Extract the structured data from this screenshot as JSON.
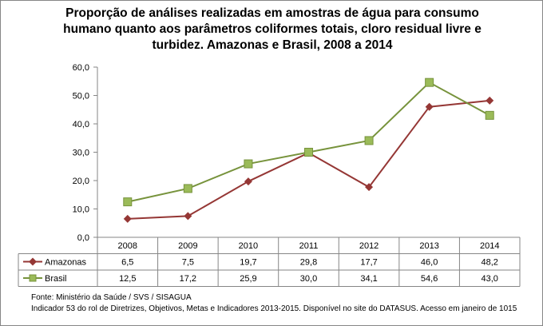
{
  "chart_data": {
    "type": "line",
    "title": "Proporção de análises realizadas em amostras de água para consumo humano quanto aos parâmetros coliformes totais, cloro residual livre e turbidez. Amazonas e Brasil, 2008 a 2014",
    "categories": [
      "2008",
      "2009",
      "2010",
      "2011",
      "2012",
      "2013",
      "2014"
    ],
    "series": [
      {
        "name": "Amazonas",
        "values": [
          6.5,
          7.5,
          19.7,
          29.8,
          17.7,
          46.0,
          48.2
        ],
        "labels": [
          "6,5",
          "7,5",
          "19,7",
          "29,8",
          "17,7",
          "46,0",
          "48,2"
        ],
        "color": "#953735",
        "marker": "diamond"
      },
      {
        "name": "Brasil",
        "values": [
          12.5,
          17.2,
          25.9,
          30.0,
          34.1,
          54.6,
          43.0
        ],
        "labels": [
          "12,5",
          "17,2",
          "25,9",
          "30,0",
          "34,1",
          "54,6",
          "43,0"
        ],
        "color": "#77933C",
        "marker_fill": "#9BBB59",
        "marker": "square"
      }
    ],
    "ylim": [
      0,
      60
    ],
    "yticks": [
      "0,0",
      "10,0",
      "20,0",
      "30,0",
      "40,0",
      "50,0",
      "60,0"
    ],
    "grid": false,
    "legend": "data-table"
  },
  "footer": {
    "source": "Fonte: Ministério da Saúde / SVS / SISAGUA",
    "note": "Indicador 53 do rol de Diretrizes, Objetivos, Metas e Indicadores 2013-2015. Disponível no site do DATASUS. Acesso em janeiro de 1015"
  }
}
